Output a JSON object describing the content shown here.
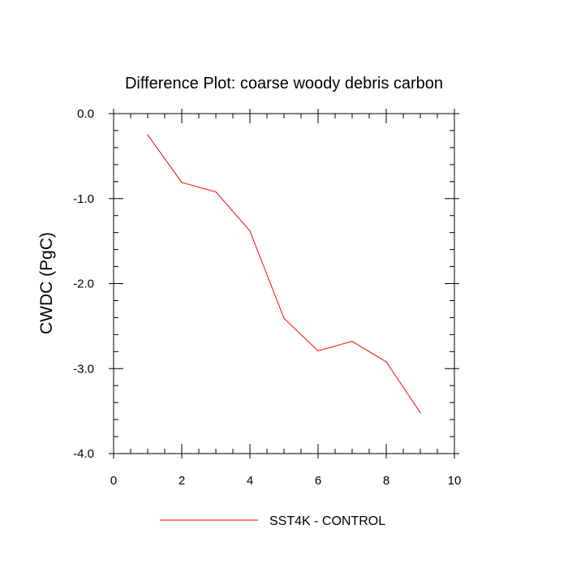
{
  "chart_data": {
    "type": "line",
    "title": "Difference Plot: coarse woody debris carbon",
    "xlabel": "",
    "ylabel": "CWDC  (PgC)",
    "xlim": [
      0,
      10
    ],
    "ylim": [
      -4.0,
      0.0
    ],
    "xticks": [
      0,
      2,
      4,
      6,
      8,
      10
    ],
    "xtick_labels": [
      "0",
      "2",
      "4",
      "6",
      "8",
      "10"
    ],
    "yticks": [
      0.0,
      -1.0,
      -2.0,
      -3.0,
      -4.0
    ],
    "ytick_labels": [
      "0.0",
      "-1.0",
      "-2.0",
      "-3.0",
      "-4.0"
    ],
    "grid": false,
    "legend_position": "bottom-center",
    "series": [
      {
        "name": "SST4K - CONTROL",
        "color": "#ff0000",
        "x": [
          1,
          2,
          3,
          4,
          5,
          6,
          7,
          8,
          9
        ],
        "values": [
          -0.25,
          -0.81,
          -0.92,
          -1.38,
          -2.41,
          -2.79,
          -2.68,
          -2.92,
          -3.52
        ]
      }
    ]
  }
}
